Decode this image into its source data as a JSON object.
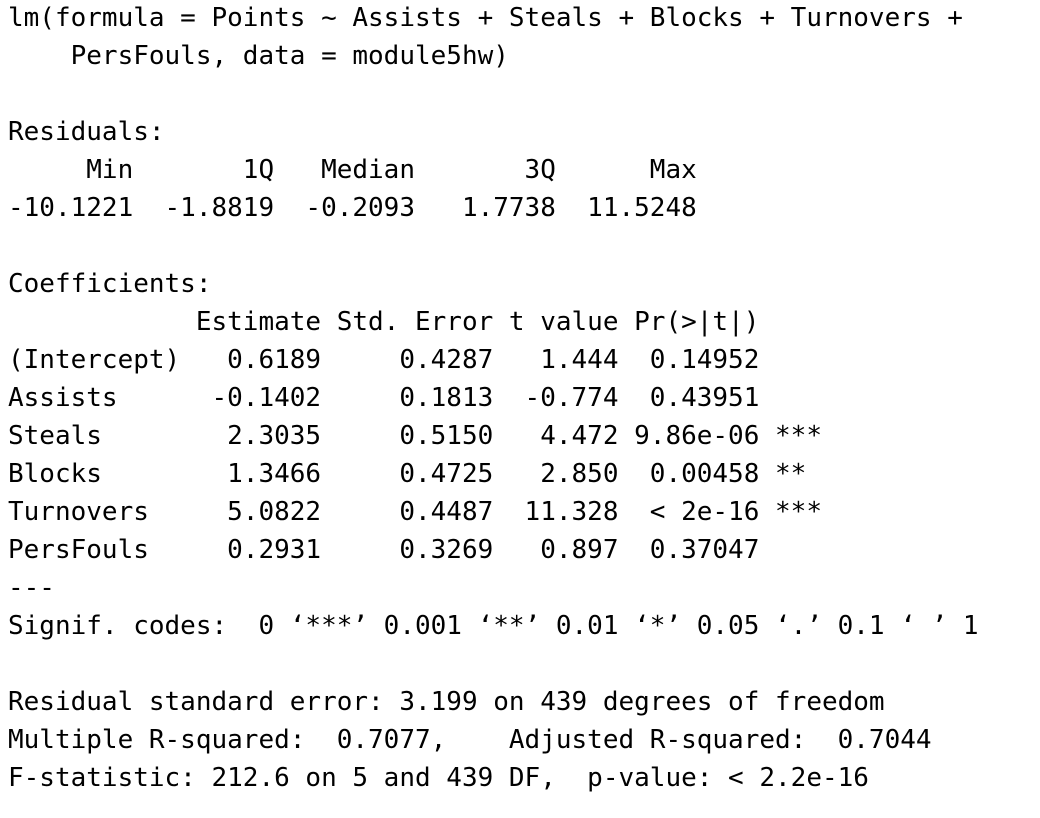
{
  "output": {
    "call": [
      "lm(formula = Points ~ Assists + Steals + Blocks + Turnovers +",
      "    PersFouls, data = module5hw)"
    ],
    "residuals_title": "Residuals:",
    "residuals_header": "     Min       1Q   Median       3Q      Max ",
    "residuals_values": "-10.1221  -1.8819  -0.2093   1.7738  11.5248 ",
    "coefficients_title": "Coefficients:",
    "coefficients_header": "            Estimate Std. Error t value Pr(>|t|)    ",
    "coefficients_rows": [
      "(Intercept)   0.6189     0.4287   1.444  0.14952    ",
      "Assists      -0.1402     0.1813  -0.774  0.43951    ",
      "Steals        2.3035     0.5150   4.472 9.86e-06 ***",
      "Blocks        1.3466     0.4725   2.850  0.00458 ** ",
      "Turnovers     5.0822     0.4487  11.328  < 2e-16 ***",
      "PersFouls     0.2931     0.3269   0.897  0.37047    "
    ],
    "separator": "---",
    "signif_codes": "Signif. codes:  0 ‘***’ 0.001 ‘**’ 0.01 ‘*’ 0.05 ‘.’ 0.1 ‘ ’ 1",
    "residual_se": "Residual standard error: 3.199 on 439 degrees of freedom",
    "r_squared": "Multiple R-squared:  0.7077,\tAdjusted R-squared:  0.7044 ",
    "f_statistic": "F-statistic: 212.6 on 5 and 439 DF,  p-value: < 2.2e-16"
  }
}
